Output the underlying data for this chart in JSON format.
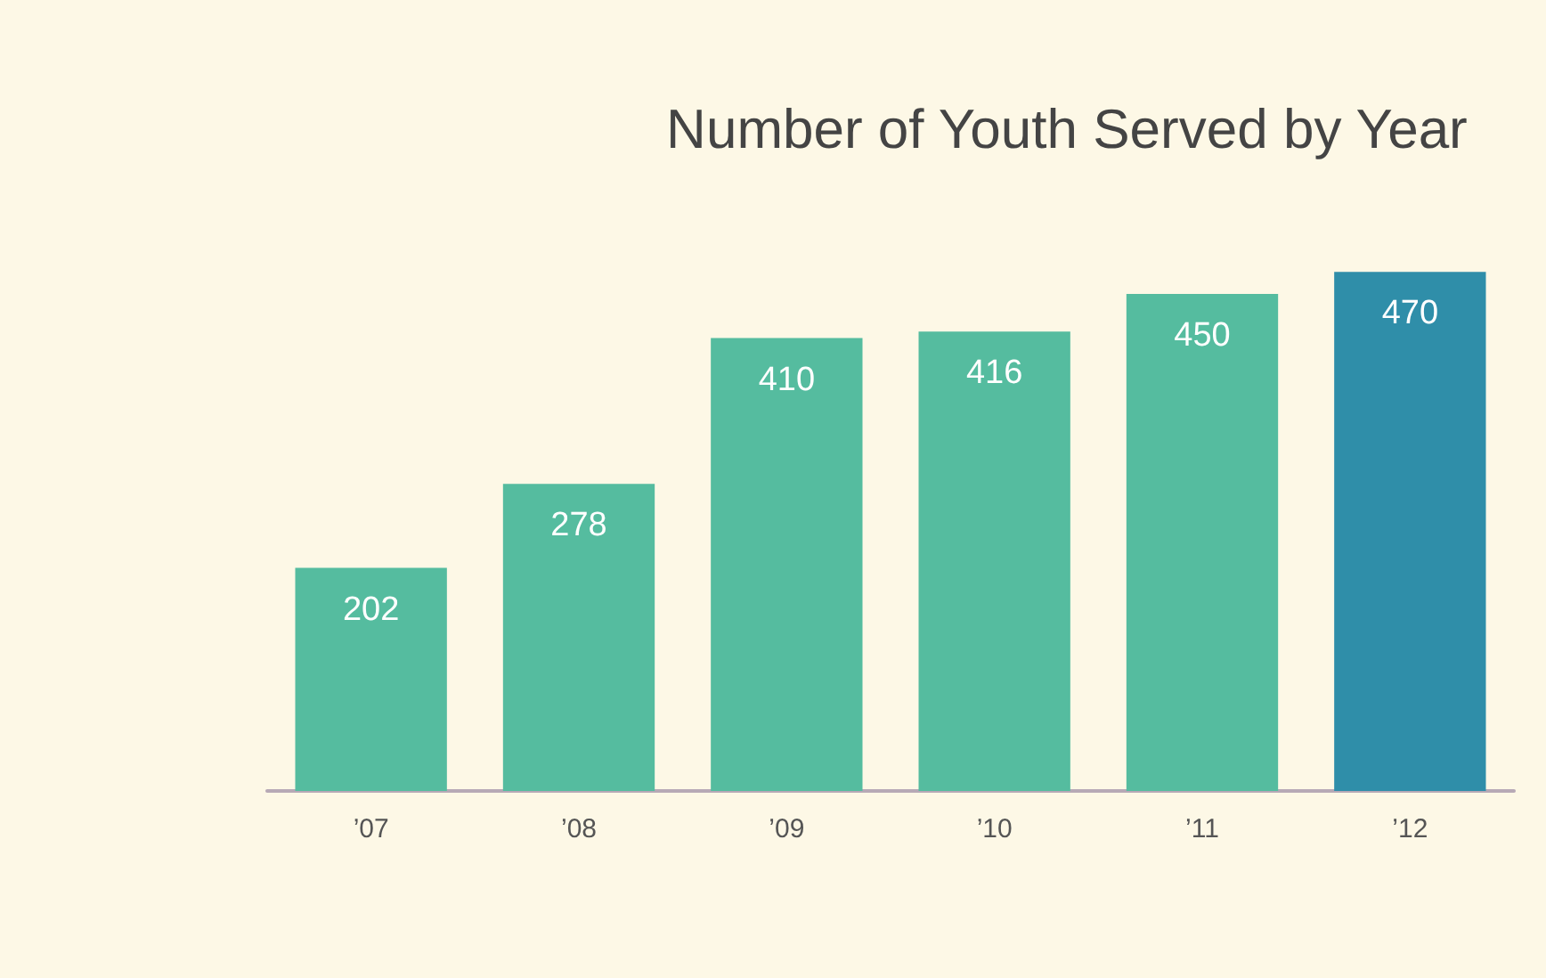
{
  "chart_data": {
    "type": "bar",
    "title": "Number of Youth Served by Year",
    "categories": [
      "’07",
      "’08",
      "’09",
      "’10",
      "’11",
      "’12"
    ],
    "values": [
      202,
      278,
      410,
      416,
      450,
      470
    ],
    "colors": [
      "#55bc9f",
      "#55bc9f",
      "#55bc9f",
      "#55bc9f",
      "#55bc9f",
      "#2f8ea9"
    ],
    "data_labels": true
  }
}
